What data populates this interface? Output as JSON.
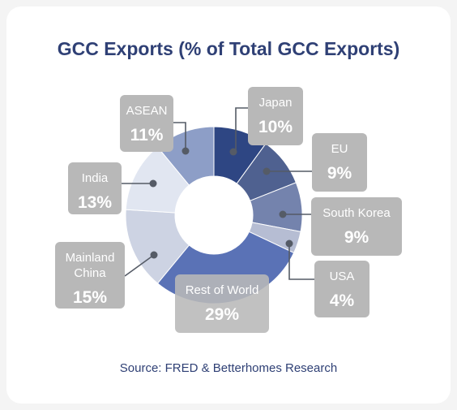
{
  "chart_data": {
    "type": "pie",
    "variant": "donut",
    "title": "GCC Exports (% of Total GCC Exports)",
    "source": "Source: FRED & Betterhomes Research",
    "unit": "%",
    "slices": [
      {
        "label": "Japan",
        "value": 10,
        "display": "10%",
        "color": "#2e4683"
      },
      {
        "label": "EU",
        "value": 9,
        "display": "9%",
        "color": "#4f6190"
      },
      {
        "label": "South Korea",
        "value": 9,
        "display": "9%",
        "color": "#7483ad"
      },
      {
        "label": "USA",
        "value": 4,
        "display": "4%",
        "color": "#b6bdd3"
      },
      {
        "label": "Rest of World",
        "value": 29,
        "display": "29%",
        "color": "#5a72b6"
      },
      {
        "label": "Mainland China",
        "value": 15,
        "display": "15%",
        "color": "#cdd3e3"
      },
      {
        "label": "India",
        "value": 13,
        "display": "13%",
        "color": "#e1e6f1"
      },
      {
        "label": "ASEAN",
        "value": 11,
        "display": "11%",
        "color": "#8d9ec7"
      }
    ],
    "label_box_color": "#b8b8b8",
    "connector_color": "#555b66"
  }
}
